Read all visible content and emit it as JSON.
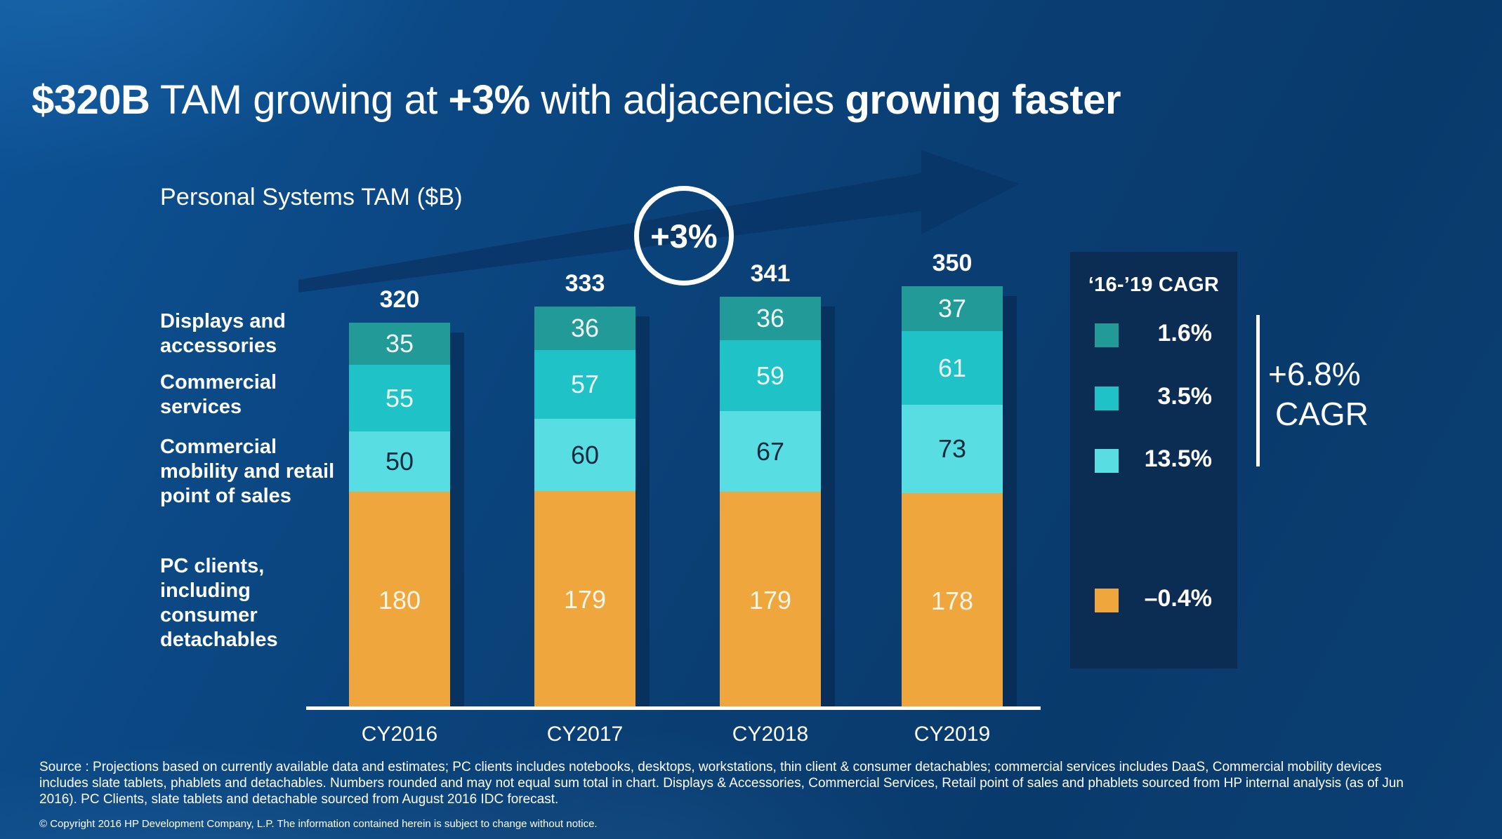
{
  "slide": {
    "title_parts": [
      {
        "text": "$320B",
        "bold": true
      },
      {
        "text": " TAM growing at ",
        "bold": false
      },
      {
        "text": "+3%",
        "bold": true
      },
      {
        "text": " with adjacencies ",
        "bold": false
      },
      {
        "text": "growing faster",
        "bold": true
      }
    ]
  },
  "chart_data": {
    "type": "bar",
    "stacked": true,
    "title": "Personal Systems TAM ($B)",
    "categories": [
      "CY2016",
      "CY2017",
      "CY2018",
      "CY2019"
    ],
    "totals": [
      320,
      333,
      341,
      350
    ],
    "series": [
      {
        "name": "Displays and accessories",
        "label_lines": [
          "Displays and",
          "accessories"
        ],
        "color": "#219a98",
        "value_text_color": "#f0fafa",
        "cagr": "1.6%",
        "values": [
          35,
          36,
          36,
          37
        ]
      },
      {
        "name": "Commercial services",
        "label_lines": [
          "Commercial",
          "services"
        ],
        "color": "#1fc2c6",
        "value_text_color": "#eefafa",
        "cagr": "3.5%",
        "values": [
          55,
          57,
          59,
          61
        ]
      },
      {
        "name": "Commercial mobility and retail point of sales",
        "label_lines": [
          "Commercial",
          "mobility and retail",
          "point of sales"
        ],
        "color": "#58dee2",
        "value_text_color": "#13293f",
        "cagr": "13.5%",
        "values": [
          50,
          60,
          67,
          73
        ]
      },
      {
        "name": "PC clients, including consumer detachables",
        "label_lines": [
          "PC clients,",
          "including",
          "consumer",
          "detachables"
        ],
        "color": "#efa63d",
        "value_text_color": "#fdf6e8",
        "cagr": "-0.4%",
        "values": [
          180,
          179,
          179,
          178
        ]
      }
    ],
    "ylim": [
      0,
      360
    ],
    "legend_position": "right",
    "grid": false
  },
  "annotations": {
    "growth_circle": "+3%",
    "overall_cagr_value": "+6.8%",
    "overall_cagr_label": "CAGR"
  },
  "legend": {
    "header": "‘16-’19 CAGR",
    "items": [
      {
        "label": "1.6%",
        "color": "#219a98"
      },
      {
        "label": "3.5%",
        "color": "#1fc2c6"
      },
      {
        "label": "13.5%",
        "color": "#58dee2"
      },
      {
        "label": "–0.4%",
        "color": "#efa63d"
      }
    ]
  },
  "footer": {
    "source_lines": [
      "Source : Projections based on currently available data and estimates; PC clients includes notebooks, desktops, workstations, thin client & consumer detachables; commercial services includes DaaS, Commercial mobility devices",
      "includes slate tablets, phablets and detachables. Numbers rounded and may not equal sum total in chart. Displays & Accessories, Commercial Services, Retail point of sales and phablets sourced from HP internal analysis (as of Jun",
      "2016). PC Clients, slate tablets and detachable sourced from August 2016 IDC forecast."
    ],
    "copyright": "© Copyright 2016 HP Development Company, L.P. The information contained herein is subject to change without notice."
  }
}
